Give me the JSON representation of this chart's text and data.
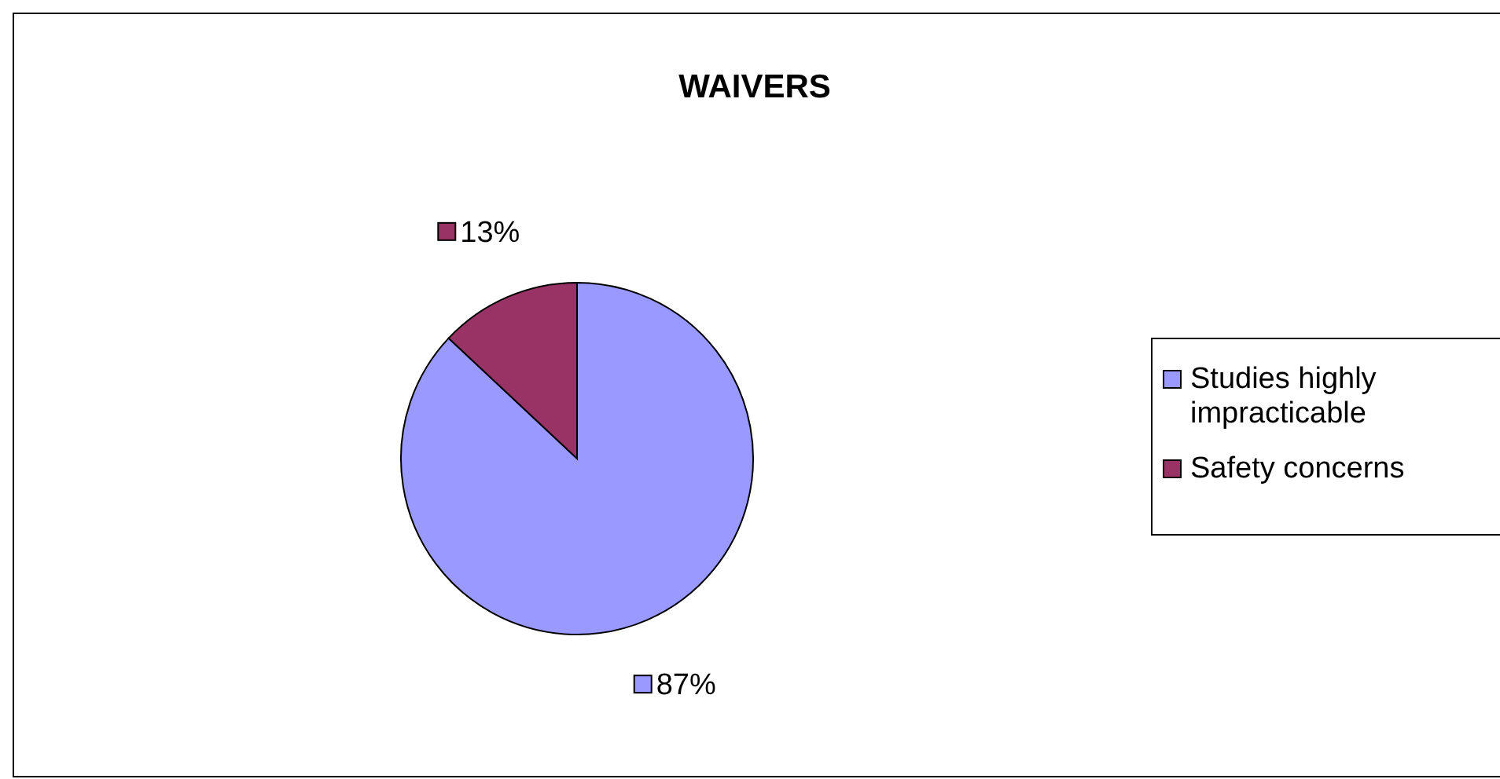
{
  "chart_data": {
    "type": "pie",
    "title": "WAIVERS",
    "categories": [
      "Studies highly impracticable",
      "Safety concerns"
    ],
    "values": [
      87,
      13
    ],
    "colors": [
      "#9999ff",
      "#993366"
    ],
    "value_labels": [
      "87%",
      "13%"
    ],
    "legend": "right"
  }
}
